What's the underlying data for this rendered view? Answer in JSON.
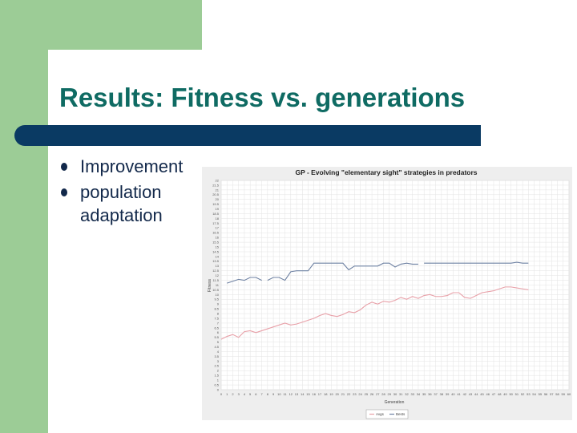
{
  "slide": {
    "title": "Results: Fitness vs. generations",
    "bullets": [
      "Improvement",
      "population adaptation"
    ]
  },
  "colors": {
    "accent_green": "#9ccc96",
    "title_teal": "#0f6b63",
    "rule_navy": "#0a3a63",
    "series_avg": "#e8a0a8",
    "series_best": "#6f82a3"
  },
  "chart_data": {
    "type": "line",
    "title": "GP - Evolving \"elementary sight\" strategies in predators",
    "xlabel": "Generation",
    "ylabel": "Fitness",
    "xlim": [
      0,
      60
    ],
    "ylim": [
      0,
      22
    ],
    "grid": true,
    "legend": "bottom",
    "series": [
      {
        "name": "Avgs",
        "color": "#e8a0a8",
        "x": [
          0,
          1,
          2,
          3,
          4,
          5,
          6,
          7,
          8,
          9,
          10,
          11,
          12,
          13,
          14,
          15,
          16,
          17,
          18,
          19,
          20,
          21,
          22,
          23,
          24,
          25,
          26,
          27,
          28,
          29,
          30,
          31,
          32,
          33,
          34,
          35,
          36,
          37,
          38,
          39,
          40,
          41,
          42,
          43,
          44,
          45,
          46,
          47,
          48,
          49,
          50,
          51,
          52,
          53
        ],
        "y": [
          5.3,
          5.6,
          5.8,
          5.5,
          6.1,
          6.2,
          6.0,
          6.2,
          6.4,
          6.6,
          6.8,
          7.0,
          6.8,
          6.9,
          7.1,
          7.3,
          7.5,
          7.8,
          8.0,
          7.8,
          7.7,
          7.9,
          8.2,
          8.1,
          8.4,
          8.9,
          9.2,
          9.0,
          9.3,
          9.2,
          9.4,
          9.7,
          9.5,
          9.8,
          9.6,
          9.9,
          10.0,
          9.8,
          9.8,
          9.9,
          10.2,
          10.2,
          9.7,
          9.6,
          9.9,
          10.2,
          10.3,
          10.4,
          10.6,
          10.8,
          10.8,
          10.7,
          10.6,
          10.5
        ]
      },
      {
        "name": "Bests",
        "color": "#6f82a3",
        "x": [
          1,
          2,
          3,
          4,
          5,
          6,
          7,
          null,
          8,
          9,
          10,
          11,
          12,
          13,
          14,
          15,
          16,
          17,
          18,
          19,
          20,
          21,
          22,
          23,
          24,
          25,
          26,
          27,
          28,
          29,
          30,
          31,
          32,
          33,
          34,
          null,
          35,
          36,
          37,
          38,
          39,
          40,
          41,
          42,
          43,
          44,
          45,
          46,
          47,
          48,
          49,
          50,
          51,
          52,
          53
        ],
        "y": [
          11.2,
          11.4,
          11.6,
          11.5,
          11.8,
          11.8,
          11.5,
          null,
          11.5,
          11.8,
          11.8,
          11.5,
          12.4,
          12.5,
          12.5,
          12.5,
          13.3,
          13.3,
          13.3,
          13.3,
          13.3,
          13.3,
          12.6,
          13.0,
          13.0,
          13.0,
          13.0,
          13.0,
          13.3,
          13.3,
          12.9,
          13.2,
          13.3,
          13.2,
          13.2,
          null,
          13.3,
          13.3,
          13.3,
          13.3,
          13.3,
          13.3,
          13.3,
          13.3,
          13.3,
          13.3,
          13.3,
          13.3,
          13.3,
          13.3,
          13.3,
          13.3,
          13.4,
          13.3,
          13.3
        ]
      }
    ]
  }
}
